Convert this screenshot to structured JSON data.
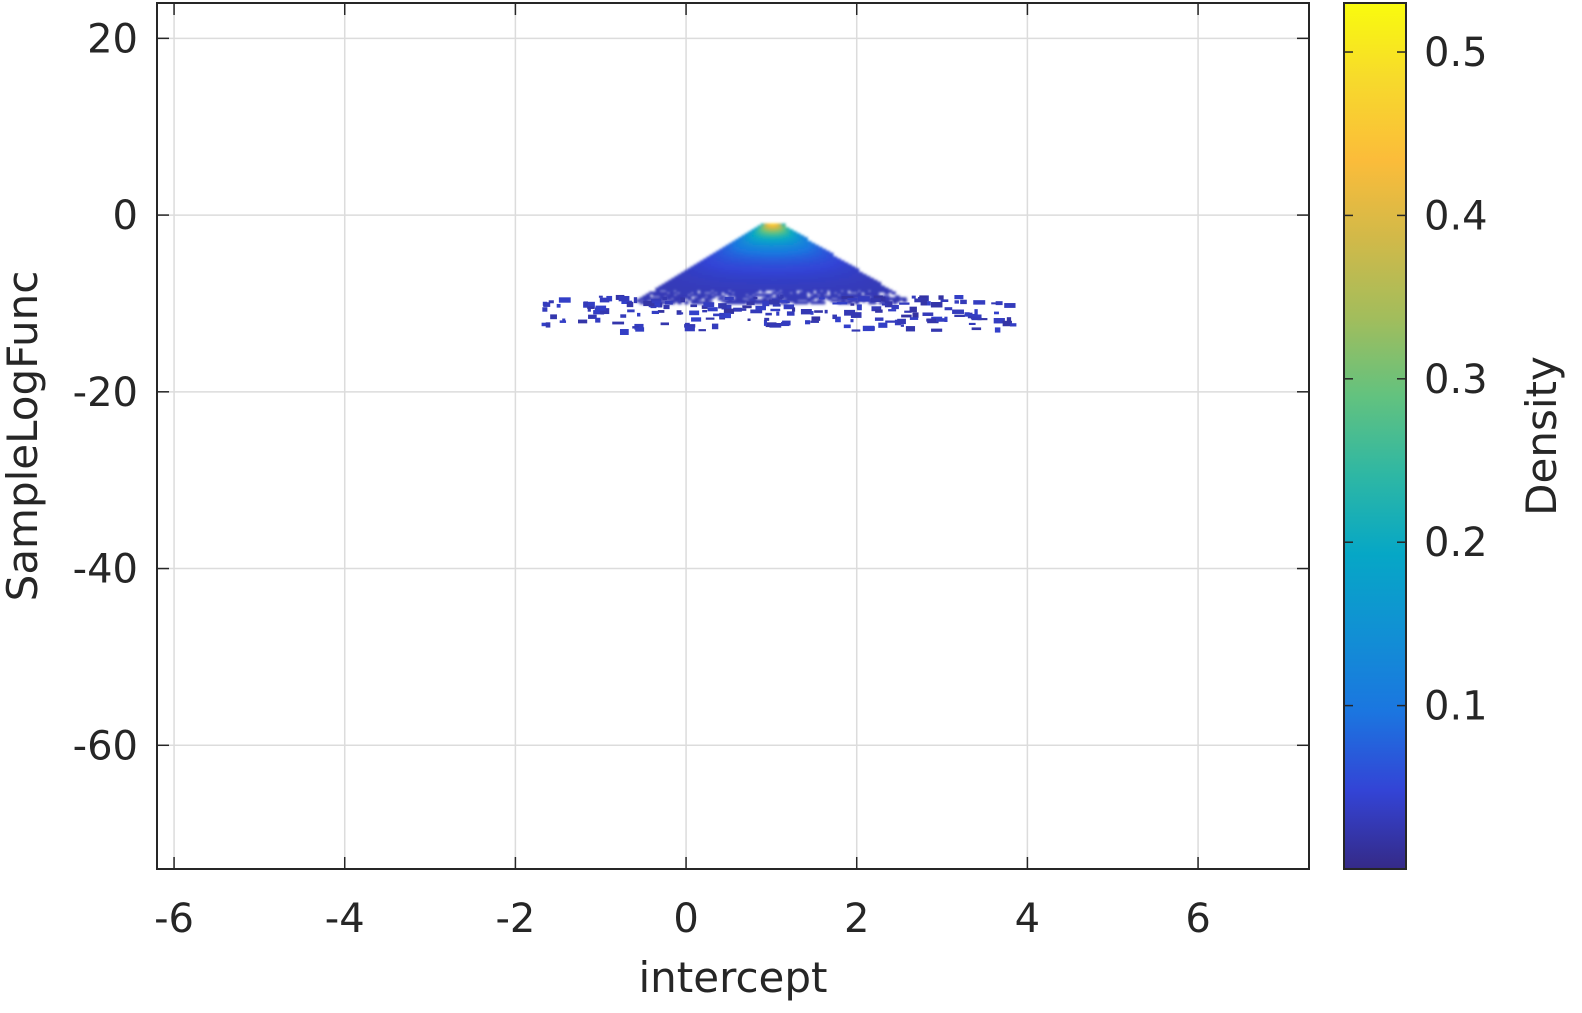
{
  "chart_data": {
    "type": "heatmap",
    "title": "",
    "xlabel": "intercept",
    "ylabel": "SampleLogFunc",
    "colorbar_label": "Density",
    "xlim": [
      -6.2,
      7.3
    ],
    "ylim": [
      -74,
      24
    ],
    "xticks": [
      -6,
      -4,
      -2,
      0,
      2,
      4,
      6
    ],
    "xtick_labels": [
      "-6",
      "-4",
      "-2",
      "0",
      "2",
      "4",
      "6"
    ],
    "yticks": [
      20,
      0,
      -20,
      -40,
      -60
    ],
    "ytick_labels": [
      "20",
      "0",
      "-20",
      "-40",
      "-60"
    ],
    "colorbar_range": [
      0.0,
      0.53
    ],
    "colorbar_ticks": [
      0.1,
      0.2,
      0.3,
      0.4,
      0.5
    ],
    "colorbar_tick_labels": [
      "0.1",
      "0.2",
      "0.3",
      "0.4",
      "0.5"
    ],
    "colormap": "parula",
    "colormap_stops": [
      "#352a87",
      "#3344d6",
      "#1b76e0",
      "#1190d4",
      "#06a7c6",
      "#2eb7a4",
      "#62c27f",
      "#a2bd5c",
      "#d1b949",
      "#fbbc3a",
      "#f7d92c",
      "#f9fb0e"
    ],
    "grid": true,
    "density_region": {
      "peak": {
        "x": 1.0,
        "y": -1.0,
        "density": 0.45
      },
      "x_range": [
        -1.7,
        3.8
      ],
      "y_range": [
        -13,
        -1
      ]
    }
  }
}
